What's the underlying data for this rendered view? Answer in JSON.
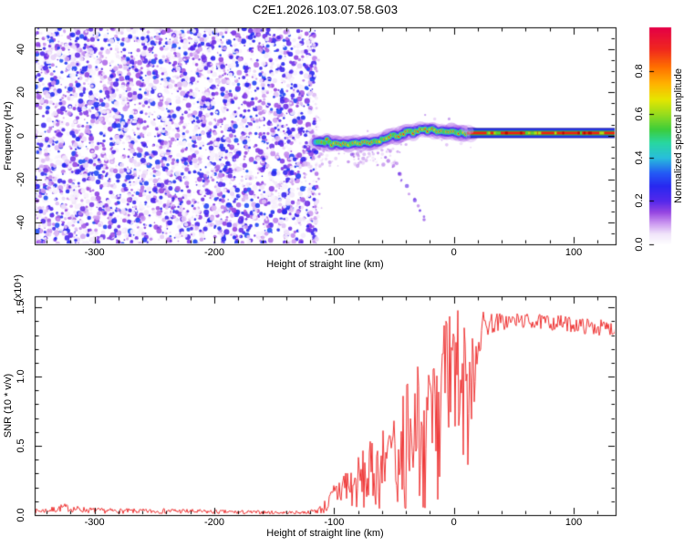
{
  "title": "C2E1.2026.103.07.58.G03",
  "colors": {
    "frame": "#000000",
    "snr_line": "#ee3434",
    "noise_purple": "#8a2be2",
    "background": "#ffffff"
  },
  "chart_data": [
    {
      "type": "heatmap",
      "title": "",
      "xlabel": "Height of straight line (km)",
      "ylabel": "Frequency (Hz)",
      "xlim": [
        -350,
        135
      ],
      "ylim": [
        -50,
        50
      ],
      "xtick_values": [
        -300,
        -200,
        -100,
        0,
        100
      ],
      "xtick_labels": [
        "-300",
        "-200",
        "-100",
        "0",
        "100"
      ],
      "ytick_values": [
        -40,
        -20,
        0,
        20,
        40
      ],
      "ytick_labels": [
        "-40",
        "-20",
        "0",
        "20",
        "40"
      ],
      "x_minor_step": 20,
      "y_minor_step": 5,
      "grid": false,
      "colorbar": {
        "label": "Normalized spectral amplitude",
        "tick_values": [
          0,
          0.2,
          0.4,
          0.6,
          0.8
        ],
        "tick_labels": [
          "0.0",
          "0.2",
          "0.4",
          "0.6",
          "0.8"
        ],
        "range": [
          0,
          1
        ],
        "position": "right"
      },
      "colormap_stops": [
        [
          0.0,
          255,
          255,
          255
        ],
        [
          0.05,
          240,
          228,
          250
        ],
        [
          0.1,
          202,
          150,
          240
        ],
        [
          0.15,
          150,
          70,
          225
        ],
        [
          0.2,
          85,
          40,
          235
        ],
        [
          0.27,
          40,
          40,
          240
        ],
        [
          0.33,
          35,
          90,
          245
        ],
        [
          0.4,
          40,
          190,
          220
        ],
        [
          0.47,
          40,
          215,
          160
        ],
        [
          0.53,
          60,
          205,
          60
        ],
        [
          0.6,
          150,
          220,
          30
        ],
        [
          0.67,
          230,
          230,
          0
        ],
        [
          0.74,
          255,
          180,
          0
        ],
        [
          0.82,
          255,
          110,
          0
        ],
        [
          0.9,
          240,
          40,
          30
        ],
        [
          1.0,
          228,
          0,
          70
        ]
      ],
      "noise_region": {
        "x_start": -350,
        "x_end": -116,
        "max_amplitude": 0.3
      },
      "signal_track": [
        [
          -115,
          -2.5,
          0.55
        ],
        [
          -110,
          -3.2,
          0.9
        ],
        [
          -106,
          -2.2,
          0.85
        ],
        [
          -102,
          -3.8,
          0.9
        ],
        [
          -98,
          -3.0,
          0.8
        ],
        [
          -94,
          -4.2,
          0.95
        ],
        [
          -90,
          -3.4,
          0.9
        ],
        [
          -86,
          -4.0,
          0.85
        ],
        [
          -82,
          -3.0,
          0.9
        ],
        [
          -78,
          -3.6,
          0.8
        ],
        [
          -74,
          -2.4,
          0.9
        ],
        [
          -70,
          -3.0,
          0.95
        ],
        [
          -66,
          -2.0,
          0.85
        ],
        [
          -62,
          -2.6,
          0.9
        ],
        [
          -58,
          -1.4,
          0.8
        ],
        [
          -54,
          -0.6,
          0.9
        ],
        [
          -50,
          0.4,
          0.85
        ],
        [
          -46,
          -0.4,
          0.9
        ],
        [
          -42,
          1.2,
          0.95
        ],
        [
          -38,
          2.2,
          0.9
        ],
        [
          -34,
          1.2,
          0.85
        ],
        [
          -30,
          2.6,
          0.9
        ],
        [
          -26,
          3.4,
          0.95
        ],
        [
          -22,
          2.4,
          0.9
        ],
        [
          -18,
          3.0,
          0.85
        ],
        [
          -14,
          1.6,
          0.9
        ],
        [
          -10,
          2.2,
          0.9
        ],
        [
          -6,
          1.4,
          0.85
        ],
        [
          -2,
          2.0,
          0.9
        ],
        [
          2,
          1.2,
          0.9
        ],
        [
          6,
          1.8,
          0.85
        ],
        [
          10,
          1.2,
          0.9
        ],
        [
          14,
          1.4,
          0.9
        ],
        [
          17,
          1.3,
          0.85
        ]
      ],
      "carrier_line": {
        "x_start": 11,
        "x_end": 135,
        "freq": 1.3,
        "layers": [
          {
            "color": "#1515a0",
            "half_height": 5.5
          },
          {
            "color": "#2b3cf0",
            "half_height": 4.5
          },
          {
            "color": "#22cc33",
            "half_height": 2.5
          },
          {
            "color": "#f02010",
            "half_height": 1.5
          }
        ]
      },
      "ghost_trail": [
        [
          -89,
          -12
        ],
        [
          -85,
          -9
        ],
        [
          -81,
          -10
        ],
        [
          -63,
          -8
        ],
        [
          -58,
          -9.5
        ],
        [
          -54,
          -11.5
        ],
        [
          -50,
          -14
        ],
        [
          -46,
          -17
        ],
        [
          -43,
          -20
        ],
        [
          -40,
          -23
        ],
        [
          -37,
          -26
        ],
        [
          -33,
          -29
        ],
        [
          -30,
          -32
        ],
        [
          -27,
          -35
        ],
        [
          -24,
          -38
        ]
      ]
    },
    {
      "type": "line",
      "title": "",
      "xlabel": "Height of straight line (km)",
      "ylabel": "SNR (10 * v/v)",
      "scale_note": "(x10⁴)",
      "xlim": [
        -350,
        135
      ],
      "ylim": [
        0,
        1.58
      ],
      "xtick_values": [
        -300,
        -200,
        -100,
        0,
        100
      ],
      "xtick_labels": [
        "-300",
        "-200",
        "-100",
        "0",
        "100"
      ],
      "ytick_values": [
        0,
        0.5,
        1.0,
        1.5
      ],
      "ytick_labels": [
        "0.0",
        "0.5",
        "1.0",
        "1.5"
      ],
      "x_minor_step": 20,
      "y_minor_step": 0.1,
      "grid": false,
      "line_color": "#ee3434",
      "envelope": [
        [
          -350,
          0.01,
          0.045
        ],
        [
          -335,
          0.015,
          0.06
        ],
        [
          -326,
          0.025,
          0.085
        ],
        [
          -318,
          0.02,
          0.07
        ],
        [
          -308,
          0.015,
          0.06
        ],
        [
          -295,
          0.012,
          0.05
        ],
        [
          -275,
          0.01,
          0.048
        ],
        [
          -255,
          0.01,
          0.045
        ],
        [
          -235,
          0.01,
          0.05
        ],
        [
          -215,
          0.008,
          0.042
        ],
        [
          -195,
          0.008,
          0.038
        ],
        [
          -175,
          0.006,
          0.035
        ],
        [
          -155,
          0.006,
          0.032
        ],
        [
          -135,
          0.006,
          0.03
        ],
        [
          -120,
          0.008,
          0.035
        ],
        [
          -110,
          0.01,
          0.08
        ],
        [
          -103,
          0.015,
          0.18
        ],
        [
          -97,
          0.02,
          0.32
        ],
        [
          -91,
          0.03,
          0.42
        ],
        [
          -85,
          0.025,
          0.36
        ],
        [
          -79,
          0.03,
          0.45
        ],
        [
          -73,
          0.025,
          0.5
        ],
        [
          -67,
          0.06,
          0.56
        ],
        [
          -61,
          0.04,
          0.62
        ],
        [
          -55,
          0.08,
          0.7
        ],
        [
          -49,
          0.05,
          0.8
        ],
        [
          -43,
          0.1,
          0.9
        ],
        [
          -37,
          0.06,
          1.0
        ],
        [
          -31,
          0.15,
          1.15
        ],
        [
          -27,
          0.1,
          1.35
        ],
        [
          -23,
          0.08,
          0.95
        ],
        [
          -19,
          0.2,
          1.15
        ],
        [
          -15,
          0.15,
          1.45
        ],
        [
          -11,
          0.25,
          1.35
        ],
        [
          -7,
          0.2,
          1.5
        ],
        [
          -3,
          0.35,
          1.48
        ],
        [
          1,
          0.45,
          1.52
        ],
        [
          5,
          0.5,
          1.55
        ],
        [
          8,
          0.3,
          1.58
        ],
        [
          10,
          0.25,
          1.4
        ],
        [
          12,
          0.25,
          0.95
        ],
        [
          14,
          0.5,
          1.25
        ],
        [
          17,
          0.8,
          1.4
        ],
        [
          20,
          1.05,
          1.45
        ],
        [
          24,
          1.25,
          1.48
        ],
        [
          30,
          1.3,
          1.47
        ],
        [
          40,
          1.33,
          1.46
        ],
        [
          55,
          1.35,
          1.46
        ],
        [
          70,
          1.34,
          1.45
        ],
        [
          85,
          1.33,
          1.45
        ],
        [
          100,
          1.32,
          1.43
        ],
        [
          115,
          1.3,
          1.42
        ],
        [
          135,
          1.29,
          1.4
        ]
      ]
    }
  ]
}
